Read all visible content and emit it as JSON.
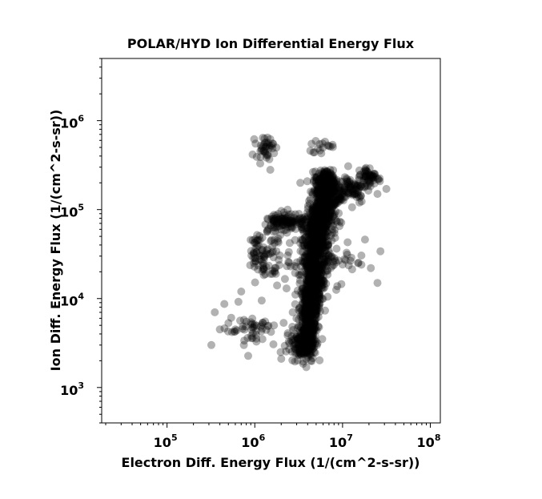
{
  "chart_data": {
    "type": "scatter",
    "title": "POLAR/HYD  Ion Differential Energy Flux",
    "xlabel": "Electron Diff. Energy Flux (1/(cm^2-s-sr))",
    "ylabel": "Ion Diff. Energy Flux (1/(cm^2-s-sr))",
    "xscale": "log",
    "yscale": "log",
    "xlim": [
      18000,
      130000000
    ],
    "ylim": [
      400,
      5000000
    ],
    "x_ticks": [
      {
        "base": "10",
        "exp": "5",
        "value": 100000
      },
      {
        "base": "10",
        "exp": "6",
        "value": 1000000
      },
      {
        "base": "10",
        "exp": "7",
        "value": 10000000
      },
      {
        "base": "10",
        "exp": "8",
        "value": 100000000
      }
    ],
    "y_ticks": [
      {
        "base": "10",
        "exp": "3",
        "value": 1000
      },
      {
        "base": "10",
        "exp": "4",
        "value": 10000
      },
      {
        "base": "10",
        "exp": "5",
        "value": 100000
      },
      {
        "base": "10",
        "exp": "6",
        "value": 1000000
      }
    ],
    "marker_color": "#000000",
    "marker_opacity": 0.3,
    "grid": false,
    "legend": "none",
    "series": [
      {
        "clusters": [
          {
            "x": 4000000,
            "y": 3500,
            "sx": 0.05,
            "sy": 0.12,
            "n": 220
          },
          {
            "x": 4300000,
            "y": 8000,
            "sx": 0.06,
            "sy": 0.14,
            "n": 280
          },
          {
            "x": 4600000,
            "y": 18000,
            "sx": 0.07,
            "sy": 0.14,
            "n": 300
          },
          {
            "x": 5000000,
            "y": 40000,
            "sx": 0.08,
            "sy": 0.14,
            "n": 300
          },
          {
            "x": 5600000,
            "y": 80000,
            "sx": 0.08,
            "sy": 0.12,
            "n": 260
          },
          {
            "x": 6000000,
            "y": 160000,
            "sx": 0.06,
            "sy": 0.09,
            "n": 160
          },
          {
            "x": 6200000,
            "y": 220000,
            "sx": 0.05,
            "sy": 0.05,
            "n": 90
          },
          {
            "x": 7500000,
            "y": 140000,
            "sx": 0.06,
            "sy": 0.1,
            "n": 80
          },
          {
            "x": 12000000,
            "y": 170000,
            "sx": 0.1,
            "sy": 0.08,
            "n": 90
          },
          {
            "x": 20000000,
            "y": 230000,
            "sx": 0.07,
            "sy": 0.06,
            "n": 60
          },
          {
            "x": 2600000,
            "y": 75000,
            "sx": 0.08,
            "sy": 0.05,
            "n": 70
          },
          {
            "x": 1700000,
            "y": 75000,
            "sx": 0.06,
            "sy": 0.05,
            "n": 40
          },
          {
            "x": 1300000,
            "y": 500000,
            "sx": 0.05,
            "sy": 0.06,
            "n": 40
          },
          {
            "x": 1100000,
            "y": 32000,
            "sx": 0.05,
            "sy": 0.12,
            "n": 45
          },
          {
            "x": 1600000,
            "y": 30000,
            "sx": 0.1,
            "sy": 0.18,
            "n": 60
          },
          {
            "x": 8000000,
            "y": 30000,
            "sx": 0.15,
            "sy": 0.15,
            "n": 35
          },
          {
            "x": 6000000,
            "y": 500000,
            "sx": 0.08,
            "sy": 0.04,
            "n": 15
          },
          {
            "x": 900000,
            "y": 4500,
            "sx": 0.15,
            "sy": 0.1,
            "n": 50
          },
          {
            "x": 3000000,
            "y": 3000,
            "sx": 0.06,
            "sy": 0.08,
            "n": 60
          }
        ],
        "points": [
          [
            320000,
            3000
          ],
          [
            350000,
            7000
          ],
          [
            400000,
            4500
          ],
          [
            450000,
            8700
          ],
          [
            500000,
            5300
          ],
          [
            550000,
            4200
          ],
          [
            600000,
            4500
          ],
          [
            650000,
            9200
          ],
          [
            700000,
            12000
          ],
          [
            750000,
            3000
          ],
          [
            800000,
            5500
          ],
          [
            2000000,
            2100
          ],
          [
            25000000,
            15000
          ],
          [
            27000000,
            34000
          ],
          [
            25000000,
            150000
          ],
          [
            21000000,
            22000
          ],
          [
            15000000,
            25000
          ],
          [
            6000000,
            16000
          ],
          [
            4000000,
            5500
          ],
          [
            18000000,
            46000
          ],
          [
            1200000,
            9500
          ],
          [
            2700000,
            7000
          ],
          [
            2300000,
            13000
          ],
          [
            3300000,
            200000
          ],
          [
            1500000,
            280000
          ],
          [
            4800000,
            440000
          ],
          [
            7000000,
            520000
          ]
        ]
      }
    ]
  }
}
